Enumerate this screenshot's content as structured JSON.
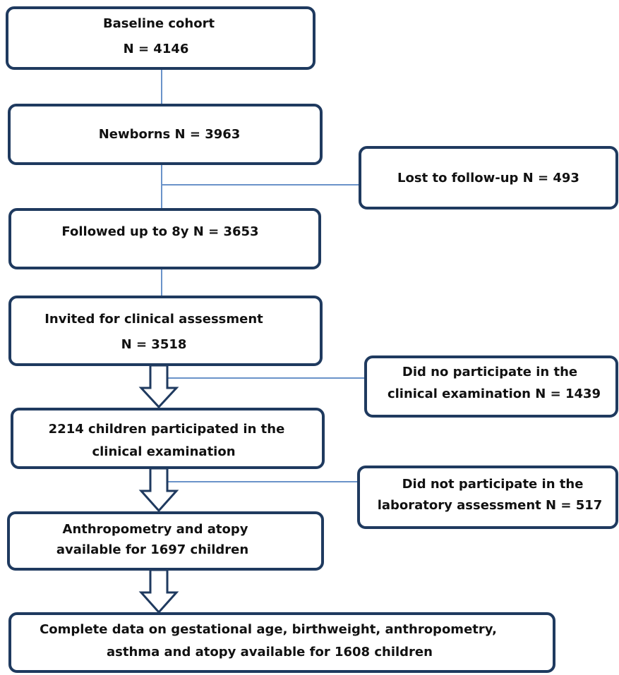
{
  "nodes": [
    {
      "lines": [
        "Baseline cohort",
        "N = 4146"
      ]
    },
    {
      "lines": [
        "Newborns N = 3963"
      ]
    },
    {
      "lines": [
        "Lost to follow-up N = 493"
      ]
    },
    {
      "lines": [
        "Followed up to 8y N = 3653"
      ]
    },
    {
      "lines": [
        "Invited for clinical assessment",
        "N = 3518"
      ]
    },
    {
      "lines": [
        "Did no participate in the",
        "clinical examination N = 1439"
      ]
    },
    {
      "lines": [
        "2214 children participated in the",
        "clinical examination"
      ]
    },
    {
      "lines": [
        "Did not participate in the",
        "laboratory assessment N = 517"
      ]
    },
    {
      "lines": [
        "Anthropometry and atopy",
        "available for 1697 children"
      ]
    },
    {
      "lines": [
        "Complete data on gestational age, birthweight, anthropometry,",
        "asthma and atopy available for 1608 children"
      ]
    }
  ]
}
